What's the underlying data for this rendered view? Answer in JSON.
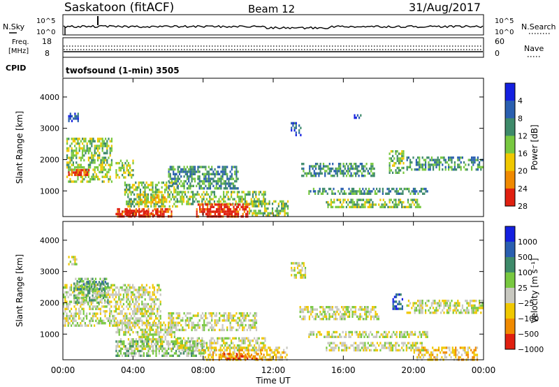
{
  "header": {
    "station": "Saskatoon (fitACF)",
    "beam": "Beam 12",
    "date": "31/Aug/2017"
  },
  "top_panels": {
    "nsky_label": "N.Sky",
    "nsearch_label": "N.Search",
    "freq_label_1": "Freq.",
    "freq_label_2": "[MHz]",
    "nave_label": "Nave",
    "cpid_label": "CPID",
    "cpid_value": "twofsound (1-min) 3505",
    "noise_ticks_left": [
      "10^5",
      "10^0"
    ],
    "noise_ticks_right": [
      "10^5",
      "10^0"
    ],
    "freq_ticks_left": [
      "18",
      "8"
    ],
    "nave_ticks_right": [
      "60",
      "0"
    ]
  },
  "chart_data": [
    {
      "type": "heatmap",
      "title": "",
      "xlabel": "Time UT",
      "ylabel": "Slant Range [km]",
      "xlim": [
        0,
        24
      ],
      "ylim": [
        180,
        4600
      ],
      "x_ticks": [
        "00:00",
        "04:00",
        "08:00",
        "12:00",
        "16:00",
        "20:00",
        "00:00"
      ],
      "y_ticks": [
        1000,
        2000,
        3000,
        4000
      ],
      "colorbar": {
        "label": "Power [dB]",
        "ticks": [
          "4",
          "8",
          "12",
          "16",
          "20",
          "24",
          "28"
        ],
        "colors": [
          "#1420e0",
          "#2a5fb0",
          "#3e8a6a",
          "#78c840",
          "#f0c800",
          "#f08a00",
          "#e02010"
        ]
      },
      "regions": [
        {
          "t0": 0.2,
          "t1": 2.8,
          "r0": 1300,
          "r1": 2700,
          "level": 3
        },
        {
          "t0": 0.3,
          "t1": 1.5,
          "r0": 1500,
          "r1": 1700,
          "level": 6
        },
        {
          "t0": 0.3,
          "t1": 0.9,
          "r0": 3200,
          "r1": 3500,
          "level": 1
        },
        {
          "t0": 3.0,
          "t1": 4.0,
          "r0": 1400,
          "r1": 2000,
          "level": 3
        },
        {
          "t0": 3.5,
          "t1": 6.5,
          "r0": 500,
          "r1": 1300,
          "level": 3
        },
        {
          "t0": 4.2,
          "t1": 5.8,
          "r0": 600,
          "r1": 900,
          "level": 4
        },
        {
          "t0": 3.0,
          "t1": 6.2,
          "r0": 200,
          "r1": 450,
          "level": 6
        },
        {
          "t0": 3.6,
          "t1": 5.6,
          "r0": 200,
          "r1": 400,
          "level": 7
        },
        {
          "t0": 6.0,
          "t1": 10.0,
          "r0": 1100,
          "r1": 1800,
          "level": 2
        },
        {
          "t0": 6.5,
          "t1": 11.5,
          "r0": 600,
          "r1": 1000,
          "level": 3
        },
        {
          "t0": 7.6,
          "t1": 10.6,
          "r0": 200,
          "r1": 600,
          "level": 6
        },
        {
          "t0": 8.2,
          "t1": 10.0,
          "r0": 200,
          "r1": 450,
          "level": 7
        },
        {
          "t0": 10.6,
          "t1": 12.8,
          "r0": 200,
          "r1": 700,
          "level": 3
        },
        {
          "t0": 13.0,
          "t1": 13.6,
          "r0": 2800,
          "r1": 3200,
          "level": 1
        },
        {
          "t0": 13.6,
          "t1": 17.8,
          "r0": 1500,
          "r1": 1900,
          "level": 2
        },
        {
          "t0": 14.0,
          "t1": 20.8,
          "r0": 900,
          "r1": 1100,
          "level": 2
        },
        {
          "t0": 15.0,
          "t1": 20.4,
          "r0": 500,
          "r1": 750,
          "level": 3
        },
        {
          "t0": 18.6,
          "t1": 19.4,
          "r0": 1600,
          "r1": 2300,
          "level": 3
        },
        {
          "t0": 19.6,
          "t1": 23.9,
          "r0": 1700,
          "r1": 2100,
          "level": 2
        },
        {
          "t0": 16.6,
          "t1": 17.0,
          "r0": 3300,
          "r1": 3450,
          "level": 1
        }
      ]
    },
    {
      "type": "heatmap",
      "title": "",
      "xlabel": "Time UT",
      "ylabel": "Slant Range [km]",
      "xlim": [
        0,
        24
      ],
      "ylim": [
        180,
        4600
      ],
      "x_ticks": [
        "00:00",
        "04:00",
        "08:00",
        "12:00",
        "16:00",
        "20:00",
        "00:00"
      ],
      "y_ticks": [
        1000,
        2000,
        3000,
        4000
      ],
      "colorbar": {
        "label": "Velocity [m s⁻¹]",
        "ticks": [
          "1000",
          "500",
          "100",
          "25",
          "−25",
          "−100",
          "−500",
          "−1000"
        ],
        "colors": [
          "#1420e0",
          "#2a5fb0",
          "#3e8a6a",
          "#78c840",
          "#c8c8c0",
          "#f0c800",
          "#f08a00",
          "#e02010"
        ]
      },
      "regions": [
        {
          "t0": 0.0,
          "t1": 5.6,
          "r0": 1300,
          "r1": 2600,
          "level": 4
        },
        {
          "t0": 0.3,
          "t1": 0.8,
          "r0": 3200,
          "r1": 3500,
          "level": 4
        },
        {
          "t0": 0.6,
          "t1": 2.6,
          "r0": 2000,
          "r1": 2800,
          "level": 3
        },
        {
          "t0": 0.8,
          "t1": 2.4,
          "r0": 2400,
          "r1": 2700,
          "level": 2
        },
        {
          "t0": 3.0,
          "t1": 6.5,
          "r0": 500,
          "r1": 1400,
          "level": 4
        },
        {
          "t0": 3.0,
          "t1": 8.0,
          "r0": 300,
          "r1": 800,
          "level": 3
        },
        {
          "t0": 6.0,
          "t1": 11.0,
          "r0": 1100,
          "r1": 1700,
          "level": 4
        },
        {
          "t0": 6.5,
          "t1": 11.5,
          "r0": 500,
          "r1": 900,
          "level": 4
        },
        {
          "t0": 8.0,
          "t1": 12.8,
          "r0": 200,
          "r1": 600,
          "level": 5
        },
        {
          "t0": 9.0,
          "t1": 11.4,
          "r0": 200,
          "r1": 400,
          "level": 6
        },
        {
          "t0": 13.0,
          "t1": 13.8,
          "r0": 2800,
          "r1": 3300,
          "level": 4
        },
        {
          "t0": 13.5,
          "t1": 18.0,
          "r0": 1500,
          "r1": 1900,
          "level": 4
        },
        {
          "t0": 14.0,
          "t1": 20.8,
          "r0": 900,
          "r1": 1100,
          "level": 4
        },
        {
          "t0": 15.0,
          "t1": 20.6,
          "r0": 500,
          "r1": 750,
          "level": 4
        },
        {
          "t0": 18.8,
          "t1": 19.4,
          "r0": 1800,
          "r1": 2300,
          "level": 1
        },
        {
          "t0": 19.6,
          "t1": 23.9,
          "r0": 1700,
          "r1": 2100,
          "level": 4
        },
        {
          "t0": 20.0,
          "t1": 23.6,
          "r0": 200,
          "r1": 600,
          "level": 5
        }
      ]
    }
  ]
}
